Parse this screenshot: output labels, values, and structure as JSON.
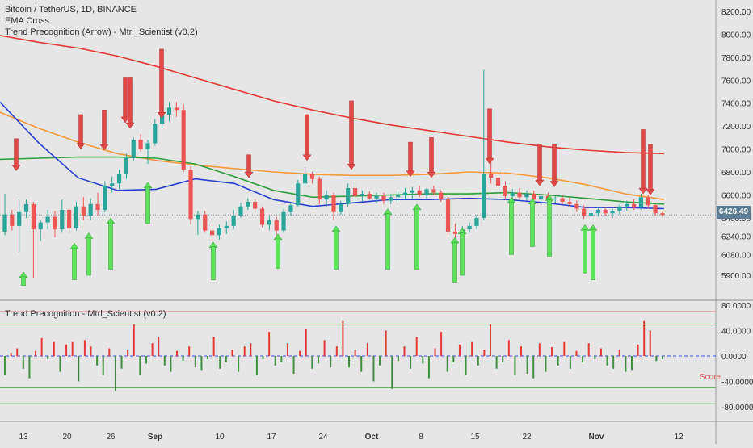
{
  "main_legend": {
    "title": "Bitcoin / TetherUS, 1D, BINANCE",
    "indicator1": "EMA Cross",
    "indicator2": "Trend Precognition (Arrow) - Mtrl_Scientist (v0.2)"
  },
  "sub_legend": {
    "title": "Trend Precognition - Mtrl_Scientist (v0.2)",
    "score_label": "Score"
  },
  "last_price": "6426.49",
  "colors": {
    "background": "#e6e6e6",
    "bull": "#2aa59a",
    "bear": "#ee5555",
    "ema_red": "#e53935",
    "ema_orange": "#f59a3a",
    "ema_green": "#2e9e3e",
    "ema_blue": "#2b3fcf",
    "arrow_up": "#5fe35f",
    "arrow_down": "#e24a4a",
    "score_up": "#e53935",
    "score_down": "#3f8f3f",
    "zero_line": "#3b4fd6"
  },
  "chart_data": [
    {
      "type": "candlestick",
      "yaxis_ticks": [
        "8200.00",
        "8000.00",
        "7800.00",
        "7600.00",
        "7400.00",
        "7200.00",
        "7000.00",
        "6800.00",
        "6600.00",
        "6400.00",
        "6240.00",
        "6080.00",
        "5900.00"
      ],
      "xaxis_ticks": [
        "13",
        "20",
        "26",
        "Sep",
        "10",
        "17",
        "24",
        "Oct",
        "8",
        "15",
        "22",
        "Nov",
        "12"
      ],
      "candles": [
        {
          "o": 6280,
          "h": 6610,
          "l": 6250,
          "c": 6430,
          "d": "up"
        },
        {
          "o": 6430,
          "h": 6470,
          "l": 6290,
          "c": 6330,
          "d": "down"
        },
        {
          "o": 6330,
          "h": 6560,
          "l": 6100,
          "c": 6450,
          "d": "up"
        },
        {
          "o": 6450,
          "h": 6560,
          "l": 6400,
          "c": 6520,
          "d": "up"
        },
        {
          "o": 6520,
          "h": 6540,
          "l": 5880,
          "c": 6300,
          "d": "down"
        },
        {
          "o": 6300,
          "h": 6380,
          "l": 6200,
          "c": 6360,
          "d": "up"
        },
        {
          "o": 6360,
          "h": 6470,
          "l": 6300,
          "c": 6410,
          "d": "up"
        },
        {
          "o": 6410,
          "h": 6460,
          "l": 6230,
          "c": 6300,
          "d": "down"
        },
        {
          "o": 6300,
          "h": 6560,
          "l": 6270,
          "c": 6470,
          "d": "up"
        },
        {
          "o": 6470,
          "h": 6490,
          "l": 6270,
          "c": 6310,
          "d": "down"
        },
        {
          "o": 6310,
          "h": 6540,
          "l": 6290,
          "c": 6500,
          "d": "up"
        },
        {
          "o": 6500,
          "h": 6580,
          "l": 6380,
          "c": 6420,
          "d": "down"
        },
        {
          "o": 6420,
          "h": 6570,
          "l": 6380,
          "c": 6520,
          "d": "up"
        },
        {
          "o": 6520,
          "h": 6620,
          "l": 6420,
          "c": 6470,
          "d": "down"
        },
        {
          "o": 6470,
          "h": 6720,
          "l": 6450,
          "c": 6680,
          "d": "up"
        },
        {
          "o": 6680,
          "h": 6760,
          "l": 6620,
          "c": 6700,
          "d": "up"
        },
        {
          "o": 6700,
          "h": 6820,
          "l": 6650,
          "c": 6780,
          "d": "up"
        },
        {
          "o": 6780,
          "h": 6960,
          "l": 6740,
          "c": 6920,
          "d": "up"
        },
        {
          "o": 6920,
          "h": 7100,
          "l": 6900,
          "c": 7080,
          "d": "up"
        },
        {
          "o": 7080,
          "h": 7130,
          "l": 6980,
          "c": 7000,
          "d": "down"
        },
        {
          "o": 7000,
          "h": 7080,
          "l": 6870,
          "c": 7050,
          "d": "up"
        },
        {
          "o": 7050,
          "h": 7260,
          "l": 7030,
          "c": 7220,
          "d": "up"
        },
        {
          "o": 7220,
          "h": 7370,
          "l": 7180,
          "c": 7300,
          "d": "up"
        },
        {
          "o": 7300,
          "h": 7410,
          "l": 7240,
          "c": 7360,
          "d": "up"
        },
        {
          "o": 7360,
          "h": 7410,
          "l": 7280,
          "c": 7340,
          "d": "down"
        },
        {
          "o": 7340,
          "h": 7390,
          "l": 6800,
          "c": 6820,
          "d": "down"
        },
        {
          "o": 6820,
          "h": 6850,
          "l": 6340,
          "c": 6390,
          "d": "down"
        },
        {
          "o": 6390,
          "h": 6460,
          "l": 6250,
          "c": 6430,
          "d": "up"
        },
        {
          "o": 6430,
          "h": 6460,
          "l": 6270,
          "c": 6290,
          "d": "down"
        },
        {
          "o": 6290,
          "h": 6340,
          "l": 6200,
          "c": 6250,
          "d": "down"
        },
        {
          "o": 6250,
          "h": 6340,
          "l": 6210,
          "c": 6310,
          "d": "up"
        },
        {
          "o": 6310,
          "h": 6370,
          "l": 6260,
          "c": 6330,
          "d": "up"
        },
        {
          "o": 6330,
          "h": 6470,
          "l": 6300,
          "c": 6420,
          "d": "up"
        },
        {
          "o": 6420,
          "h": 6530,
          "l": 6400,
          "c": 6500,
          "d": "up"
        },
        {
          "o": 6500,
          "h": 6570,
          "l": 6470,
          "c": 6540,
          "d": "up"
        },
        {
          "o": 6540,
          "h": 6560,
          "l": 6450,
          "c": 6480,
          "d": "down"
        },
        {
          "o": 6480,
          "h": 6500,
          "l": 6320,
          "c": 6340,
          "d": "down"
        },
        {
          "o": 6340,
          "h": 6420,
          "l": 6290,
          "c": 6380,
          "d": "up"
        },
        {
          "o": 6380,
          "h": 6410,
          "l": 6250,
          "c": 6290,
          "d": "down"
        },
        {
          "o": 6290,
          "h": 6480,
          "l": 6270,
          "c": 6450,
          "d": "up"
        },
        {
          "o": 6450,
          "h": 6530,
          "l": 6420,
          "c": 6510,
          "d": "up"
        },
        {
          "o": 6510,
          "h": 6730,
          "l": 6500,
          "c": 6700,
          "d": "up"
        },
        {
          "o": 6700,
          "h": 6840,
          "l": 6680,
          "c": 6780,
          "d": "up"
        },
        {
          "o": 6780,
          "h": 6800,
          "l": 6700,
          "c": 6740,
          "d": "down"
        },
        {
          "o": 6740,
          "h": 6760,
          "l": 6520,
          "c": 6560,
          "d": "down"
        },
        {
          "o": 6560,
          "h": 6640,
          "l": 6500,
          "c": 6600,
          "d": "up"
        },
        {
          "o": 6600,
          "h": 6620,
          "l": 6380,
          "c": 6450,
          "d": "down"
        },
        {
          "o": 6450,
          "h": 6550,
          "l": 6430,
          "c": 6520,
          "d": "up"
        },
        {
          "o": 6520,
          "h": 6700,
          "l": 6500,
          "c": 6660,
          "d": "up"
        },
        {
          "o": 6660,
          "h": 6720,
          "l": 6560,
          "c": 6590,
          "d": "down"
        },
        {
          "o": 6590,
          "h": 6640,
          "l": 6540,
          "c": 6610,
          "d": "up"
        },
        {
          "o": 6610,
          "h": 6630,
          "l": 6560,
          "c": 6570,
          "d": "down"
        },
        {
          "o": 6570,
          "h": 6620,
          "l": 6530,
          "c": 6590,
          "d": "up"
        },
        {
          "o": 6590,
          "h": 6620,
          "l": 6520,
          "c": 6550,
          "d": "down"
        },
        {
          "o": 6550,
          "h": 6610,
          "l": 6520,
          "c": 6580,
          "d": "up"
        },
        {
          "o": 6580,
          "h": 6630,
          "l": 6540,
          "c": 6600,
          "d": "up"
        },
        {
          "o": 6600,
          "h": 6660,
          "l": 6560,
          "c": 6620,
          "d": "up"
        },
        {
          "o": 6620,
          "h": 6670,
          "l": 6570,
          "c": 6640,
          "d": "up"
        },
        {
          "o": 6640,
          "h": 6680,
          "l": 6580,
          "c": 6600,
          "d": "down"
        },
        {
          "o": 6600,
          "h": 6660,
          "l": 6570,
          "c": 6650,
          "d": "up"
        },
        {
          "o": 6650,
          "h": 6680,
          "l": 6600,
          "c": 6620,
          "d": "down"
        },
        {
          "o": 6620,
          "h": 6640,
          "l": 6540,
          "c": 6560,
          "d": "down"
        },
        {
          "o": 6560,
          "h": 6580,
          "l": 6250,
          "c": 6280,
          "d": "down"
        },
        {
          "o": 6280,
          "h": 6350,
          "l": 6200,
          "c": 6260,
          "d": "down"
        },
        {
          "o": 6260,
          "h": 6330,
          "l": 6230,
          "c": 6300,
          "d": "up"
        },
        {
          "o": 6300,
          "h": 6360,
          "l": 6270,
          "c": 6330,
          "d": "up"
        },
        {
          "o": 6330,
          "h": 6420,
          "l": 6300,
          "c": 6400,
          "d": "up"
        },
        {
          "o": 6400,
          "h": 7690,
          "l": 6380,
          "c": 6780,
          "d": "up"
        },
        {
          "o": 6780,
          "h": 6910,
          "l": 6700,
          "c": 6750,
          "d": "down"
        },
        {
          "o": 6750,
          "h": 6800,
          "l": 6650,
          "c": 6680,
          "d": "down"
        },
        {
          "o": 6680,
          "h": 6720,
          "l": 6560,
          "c": 6590,
          "d": "down"
        },
        {
          "o": 6590,
          "h": 6650,
          "l": 6540,
          "c": 6620,
          "d": "up"
        },
        {
          "o": 6620,
          "h": 6660,
          "l": 6560,
          "c": 6580,
          "d": "down"
        },
        {
          "o": 6580,
          "h": 6640,
          "l": 6550,
          "c": 6610,
          "d": "up"
        },
        {
          "o": 6610,
          "h": 6640,
          "l": 6540,
          "c": 6560,
          "d": "down"
        },
        {
          "o": 6560,
          "h": 6610,
          "l": 6530,
          "c": 6590,
          "d": "up"
        },
        {
          "o": 6590,
          "h": 6620,
          "l": 6540,
          "c": 6560,
          "d": "down"
        },
        {
          "o": 6560,
          "h": 6590,
          "l": 6530,
          "c": 6570,
          "d": "up"
        },
        {
          "o": 6570,
          "h": 6600,
          "l": 6520,
          "c": 6540,
          "d": "down"
        },
        {
          "o": 6540,
          "h": 6580,
          "l": 6500,
          "c": 6520,
          "d": "down"
        },
        {
          "o": 6520,
          "h": 6550,
          "l": 6450,
          "c": 6480,
          "d": "down"
        },
        {
          "o": 6480,
          "h": 6510,
          "l": 6390,
          "c": 6420,
          "d": "down"
        },
        {
          "o": 6420,
          "h": 6470,
          "l": 6380,
          "c": 6440,
          "d": "up"
        },
        {
          "o": 6440,
          "h": 6490,
          "l": 6410,
          "c": 6470,
          "d": "up"
        },
        {
          "o": 6470,
          "h": 6490,
          "l": 6420,
          "c": 6440,
          "d": "down"
        },
        {
          "o": 6440,
          "h": 6480,
          "l": 6400,
          "c": 6460,
          "d": "up"
        },
        {
          "o": 6460,
          "h": 6520,
          "l": 6430,
          "c": 6500,
          "d": "up"
        },
        {
          "o": 6500,
          "h": 6550,
          "l": 6460,
          "c": 6520,
          "d": "up"
        },
        {
          "o": 6520,
          "h": 6560,
          "l": 6470,
          "c": 6490,
          "d": "down"
        },
        {
          "o": 6490,
          "h": 6610,
          "l": 6470,
          "c": 6580,
          "d": "up"
        },
        {
          "o": 6580,
          "h": 6600,
          "l": 6480,
          "c": 6510,
          "d": "down"
        },
        {
          "o": 6510,
          "h": 6520,
          "l": 6420,
          "c": 6440,
          "d": "down"
        },
        {
          "o": 6440,
          "h": 6460,
          "l": 6410,
          "c": 6426,
          "d": "down"
        }
      ],
      "ema_series": [
        {
          "color": "red",
          "values": [
            7990,
            7930,
            7880,
            7810,
            7720,
            7620,
            7520,
            7420,
            7340,
            7270,
            7210,
            7160,
            7110,
            7060,
            7020,
            6990,
            6970,
            6960
          ]
        },
        {
          "color": "orange",
          "values": [
            7320,
            7180,
            7060,
            6960,
            6900,
            6860,
            6830,
            6800,
            6780,
            6770,
            6770,
            6780,
            6800,
            6790,
            6750,
            6690,
            6610,
            6560
          ]
        },
        {
          "color": "green",
          "values": [
            6910,
            6920,
            6930,
            6930,
            6920,
            6870,
            6760,
            6640,
            6580,
            6590,
            6600,
            6610,
            6610,
            6620,
            6600,
            6570,
            6540,
            6520
          ]
        },
        {
          "color": "blue",
          "values": [
            7410,
            7050,
            6750,
            6640,
            6650,
            6740,
            6700,
            6560,
            6500,
            6530,
            6560,
            6560,
            6570,
            6560,
            6530,
            6490,
            6490,
            6480
          ]
        }
      ],
      "down_arrows": [
        {
          "x": 20,
          "top": 7090,
          "len": 280
        },
        {
          "x": 100,
          "top": 7300,
          "len": 300
        },
        {
          "x": 129,
          "top": 7340,
          "len": 350
        },
        {
          "x": 155,
          "top": 7620,
          "len": 390
        },
        {
          "x": 161,
          "top": 7620,
          "len": 440
        },
        {
          "x": 200,
          "top": 7870,
          "len": 600
        },
        {
          "x": 308,
          "top": 6950,
          "len": 200
        },
        {
          "x": 380,
          "top": 7300,
          "len": 400
        },
        {
          "x": 435,
          "top": 7420,
          "len": 600
        },
        {
          "x": 508,
          "top": 7060,
          "len": 300
        },
        {
          "x": 534,
          "top": 7100,
          "len": 350
        },
        {
          "x": 606,
          "top": 7350,
          "len": 480
        },
        {
          "x": 668,
          "top": 7040,
          "len": 360
        },
        {
          "x": 686,
          "top": 7040,
          "len": 370
        },
        {
          "x": 796,
          "top": 7170,
          "len": 560
        },
        {
          "x": 805,
          "top": 7040,
          "len": 440
        }
      ],
      "up_arrows": [
        {
          "x": 29,
          "bottom": 5810,
          "len": 120
        },
        {
          "x": 92,
          "bottom": 5860,
          "len": 320
        },
        {
          "x": 110,
          "bottom": 5900,
          "len": 370
        },
        {
          "x": 137,
          "bottom": 5950,
          "len": 450
        },
        {
          "x": 183,
          "bottom": 6350,
          "len": 360
        },
        {
          "x": 264,
          "bottom": 5860,
          "len": 330
        },
        {
          "x": 344,
          "bottom": 5960,
          "len": 300
        },
        {
          "x": 416,
          "bottom": 5950,
          "len": 380
        },
        {
          "x": 480,
          "bottom": 5950,
          "len": 530
        },
        {
          "x": 516,
          "bottom": 5950,
          "len": 570
        },
        {
          "x": 563,
          "bottom": 5840,
          "len": 390
        },
        {
          "x": 572,
          "bottom": 5900,
          "len": 410
        },
        {
          "x": 633,
          "bottom": 6080,
          "len": 500
        },
        {
          "x": 659,
          "bottom": 6150,
          "len": 420
        },
        {
          "x": 680,
          "bottom": 6060,
          "len": 540
        },
        {
          "x": 724,
          "bottom": 5920,
          "len": 420
        },
        {
          "x": 734,
          "bottom": 5860,
          "len": 480
        }
      ]
    },
    {
      "type": "bar",
      "title": "Trend Precognition - Mtrl_Scientist (v0.2)",
      "ylabel": "Score",
      "ylim": [
        -90,
        95
      ],
      "yaxis_ticks": [
        "80.0000",
        "40.0000",
        "0.0000",
        "-40.0000",
        "-80.0000"
      ],
      "reference_lines": [
        70,
        50,
        0,
        -50,
        -75
      ],
      "values": [
        -30,
        5,
        12,
        -20,
        -35,
        8,
        28,
        -5,
        22,
        -25,
        18,
        22,
        -40,
        25,
        15,
        -15,
        -30,
        12,
        -55,
        -20,
        10,
        50,
        -30,
        -12,
        20,
        30,
        -15,
        -25,
        8,
        -8,
        15,
        -18,
        -22,
        -5,
        30,
        -20,
        -10,
        10,
        -25,
        15,
        20,
        -30,
        -5,
        38,
        -15,
        -10,
        20,
        -28,
        8,
        42,
        -20,
        -12,
        25,
        -18,
        15,
        55,
        -18,
        10,
        -25,
        20,
        -40,
        -15,
        40,
        -52,
        -8,
        15,
        -20,
        30,
        -12,
        -35,
        12,
        38,
        -25,
        -10,
        18,
        -30,
        22,
        -15,
        10,
        50,
        -20,
        -10,
        25,
        -30,
        15,
        -28,
        -35,
        20,
        -25,
        14,
        -15,
        22,
        -20,
        8,
        -10,
        20,
        -5,
        12,
        -15,
        -20,
        10,
        -25,
        -22,
        18,
        55,
        40,
        -8,
        -5
      ]
    }
  ]
}
